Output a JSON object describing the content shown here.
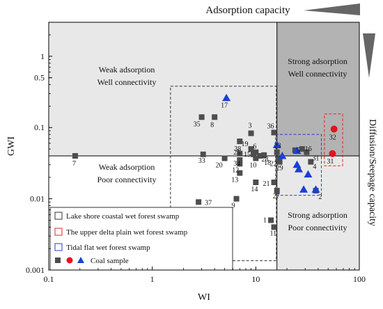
{
  "chart_data": {
    "type": "scatter",
    "xlabel": "WI",
    "ylabel": "GWI",
    "xscale": "log",
    "yscale": "log",
    "xlim": [
      0.1,
      100
    ],
    "ylim": [
      0.001,
      3
    ],
    "x_ticks": [
      0.1,
      1,
      10,
      100
    ],
    "x_tick_labels": [
      "0.1",
      "1",
      "10",
      "100"
    ],
    "y_ticks": [
      0.001,
      0.01,
      0.1,
      0.5,
      1
    ],
    "y_tick_labels": [
      "0.001",
      "0.01",
      "0.1",
      "0.5",
      "1"
    ],
    "thresholds": {
      "x": 16,
      "y": 0.04
    },
    "quadrant_labels": {
      "top_left": [
        "Weak adsorption",
        "Well connectivity"
      ],
      "bottom_left": [
        "Weak adsorption",
        "Poor connectivity"
      ],
      "top_right": [
        "Strong adsorption",
        "Well connectivity"
      ],
      "bottom_right": [
        "Strong adsorption",
        "Poor connectivity"
      ]
    },
    "gradient_labels": {
      "top": "Adsorption capacity",
      "right": "Diffusion/Seepage capacity"
    },
    "legend": {
      "position": "bottom-left",
      "entries": [
        {
          "label": "Lake shore coastal wet forest swamp",
          "kind": "box",
          "color": "#333333"
        },
        {
          "label": "The upper delta plain wet forest swamp",
          "kind": "box",
          "color": "#e0262b"
        },
        {
          "label": "Tidal flat wet forest swamp",
          "kind": "box",
          "color": "#2a37d8"
        },
        {
          "label": "Coal sample",
          "kind": "markers"
        }
      ]
    },
    "colors": {
      "lake_shore": "#4d4d4d",
      "upper_delta": "#e8111b",
      "tidal_flat": "#1b3fd6",
      "quadrant_light": "#e8e8e8",
      "quadrant_dark": "#b3b3b3"
    },
    "series": [
      {
        "marker": "square",
        "points": [
          {
            "id": "1",
            "x": 14.0,
            "y": 0.005
          },
          {
            "id": "2",
            "x": 38.0,
            "y": 0.013
          },
          {
            "id": "3",
            "x": 9.0,
            "y": 0.083
          },
          {
            "id": "4",
            "x": 34.0,
            "y": 0.033
          },
          {
            "id": "5",
            "x": 24.0,
            "y": 0.048
          },
          {
            "id": "6",
            "x": 10.0,
            "y": 0.045
          },
          {
            "id": "7",
            "x": 0.18,
            "y": 0.04
          },
          {
            "id": "8",
            "x": 4.0,
            "y": 0.14
          },
          {
            "id": "9",
            "x": 6.5,
            "y": 0.01
          },
          {
            "id": "10",
            "x": 10.0,
            "y": 0.037
          },
          {
            "id": "11",
            "x": 15.0,
            "y": 0.004
          },
          {
            "id": "12",
            "x": 7.0,
            "y": 0.031
          },
          {
            "id": "13",
            "x": 7.0,
            "y": 0.023
          },
          {
            "id": "14",
            "x": 10.0,
            "y": 0.017
          },
          {
            "id": "15",
            "x": 9.5,
            "y": 0.042
          },
          {
            "id": "16",
            "x": 28.0,
            "y": 0.05
          },
          {
            "id": "18",
            "x": 12.0,
            "y": 0.041
          },
          {
            "id": "19",
            "x": 9.0,
            "y": 0.05
          },
          {
            "id": "20",
            "x": 5.0,
            "y": 0.037
          },
          {
            "id": "21",
            "x": 15.0,
            "y": 0.017
          },
          {
            "id": "22",
            "x": 16.5,
            "y": 0.036
          },
          {
            "id": "23",
            "x": 16.0,
            "y": 0.045
          },
          {
            "id": "25",
            "x": 7.0,
            "y": 0.043
          },
          {
            "id": "27",
            "x": 16.0,
            "y": 0.013
          },
          {
            "id": "28",
            "x": 11.0,
            "y": 0.04
          },
          {
            "id": "29",
            "x": 17.0,
            "y": 0.033
          },
          {
            "id": "31",
            "x": 31.0,
            "y": 0.045
          },
          {
            "id": "33",
            "x": 3.1,
            "y": 0.042
          },
          {
            "id": "34",
            "x": 7.0,
            "y": 0.035
          },
          {
            "id": "35",
            "x": 3.0,
            "y": 0.14
          },
          {
            "id": "36",
            "x": 15.0,
            "y": 0.085
          },
          {
            "id": "37",
            "x": 2.8,
            "y": 0.009
          },
          {
            "id": "38",
            "x": 7.0,
            "y": 0.064
          }
        ]
      },
      {
        "marker": "circle",
        "points": [
          {
            "id": "31",
            "x": 55.0,
            "y": 0.043
          },
          {
            "id": "32",
            "x": 57.0,
            "y": 0.095
          }
        ]
      },
      {
        "marker": "triangle",
        "points": [
          {
            "id": "2",
            "x": 38.0,
            "y": 0.0135
          },
          {
            "id": "5",
            "x": 25.0,
            "y": 0.047
          },
          {
            "id": "17",
            "x": 5.2,
            "y": 0.26
          },
          {
            "id": "18",
            "x": 32.0,
            "y": 0.022
          },
          {
            "id": "24",
            "x": 26.0,
            "y": 0.026
          },
          {
            "id": "26",
            "x": 25.0,
            "y": 0.03
          },
          {
            "id": "30",
            "x": 29.0,
            "y": 0.0135
          },
          {
            "id": "33",
            "x": 18.0,
            "y": 0.04
          },
          {
            "id": "38",
            "x": 16.0,
            "y": 0.057
          }
        ]
      }
    ]
  }
}
